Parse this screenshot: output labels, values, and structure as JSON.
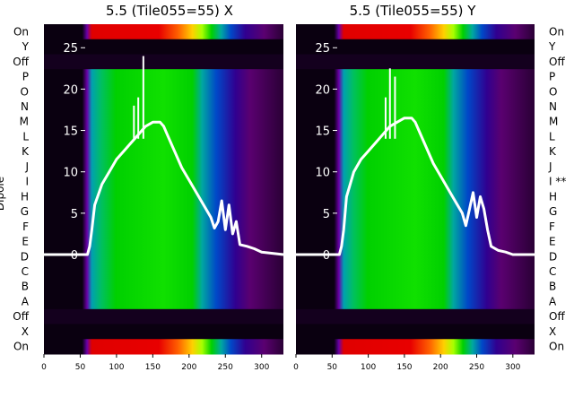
{
  "chart_data": [
    {
      "type": "heatmap",
      "title": "5.5 (Tile055=55) X",
      "ylabel": "Dipole",
      "x_ticks": [
        "0",
        "50",
        "100",
        "150",
        "200",
        "250",
        "300"
      ],
      "xlim": [
        0,
        330
      ],
      "dipole_labels": [
        "On",
        "Y",
        "Off",
        "P",
        "O",
        "N",
        "M",
        "L",
        "K",
        "J",
        "I",
        "H",
        "G",
        "F",
        "E",
        "D",
        "C",
        "B",
        "A",
        "Off",
        "X",
        "On"
      ],
      "overlay_ticks": [
        "25",
        "20",
        "15",
        "10",
        "5",
        "0"
      ],
      "overlay_ylim": [
        0,
        26
      ],
      "overlay_line": {
        "color": "#ffffff",
        "x": [
          0,
          60,
          63,
          66,
          70,
          80,
          90,
          100,
          110,
          120,
          130,
          140,
          150,
          160,
          165,
          170,
          180,
          190,
          200,
          210,
          220,
          230,
          235,
          240,
          245,
          250,
          255,
          260,
          265,
          270,
          280,
          290,
          300,
          330
        ],
        "y": [
          0,
          0,
          1,
          3,
          6,
          8.5,
          10,
          11.5,
          12.5,
          13.5,
          14.5,
          15.5,
          16,
          16,
          15.5,
          14.5,
          12.5,
          10.5,
          9,
          7.5,
          6,
          4.5,
          3.2,
          4,
          6.5,
          3,
          6,
          2.5,
          4,
          1.2,
          1,
          0.7,
          0.3,
          0
        ]
      },
      "overlay_spikes": [
        {
          "x": 137,
          "y": 24
        },
        {
          "x": 124,
          "y": 18
        },
        {
          "x": 130,
          "y": 19
        }
      ]
    },
    {
      "type": "heatmap",
      "title": "5.5 (Tile055=55) Y",
      "ylabel": "",
      "x_ticks": [
        "0",
        "50",
        "100",
        "150",
        "200",
        "250",
        "300"
      ],
      "xlim": [
        0,
        330
      ],
      "dipole_labels": [
        "On",
        "Y",
        "Off",
        "P",
        "O",
        "N",
        "M",
        "L",
        "K",
        "J",
        "I **",
        "H",
        "G",
        "F",
        "E",
        "D",
        "C",
        "B",
        "A",
        "Off",
        "X",
        "On"
      ],
      "overlay_ticks": [
        "25",
        "20",
        "15",
        "10",
        "5",
        "0"
      ],
      "overlay_ylim": [
        0,
        26
      ],
      "overlay_line": {
        "color": "#ffffff",
        "x": [
          0,
          60,
          63,
          66,
          70,
          80,
          90,
          100,
          110,
          120,
          130,
          140,
          150,
          160,
          165,
          170,
          180,
          190,
          200,
          210,
          220,
          230,
          235,
          240,
          245,
          250,
          255,
          260,
          265,
          270,
          280,
          290,
          300,
          330
        ],
        "y": [
          0,
          0,
          1,
          3,
          7,
          10,
          11.5,
          12.5,
          13.5,
          14.5,
          15.5,
          16,
          16.5,
          16.5,
          16,
          15,
          13,
          11,
          9.5,
          8,
          6.5,
          5,
          3.5,
          5.5,
          7.5,
          4.5,
          7,
          5.5,
          3,
          1,
          0.5,
          0.3,
          0,
          0
        ]
      },
      "overlay_spikes": [
        {
          "x": 130,
          "y": 22.5
        },
        {
          "x": 137,
          "y": 21.5
        },
        {
          "x": 124,
          "y": 19
        }
      ]
    }
  ]
}
